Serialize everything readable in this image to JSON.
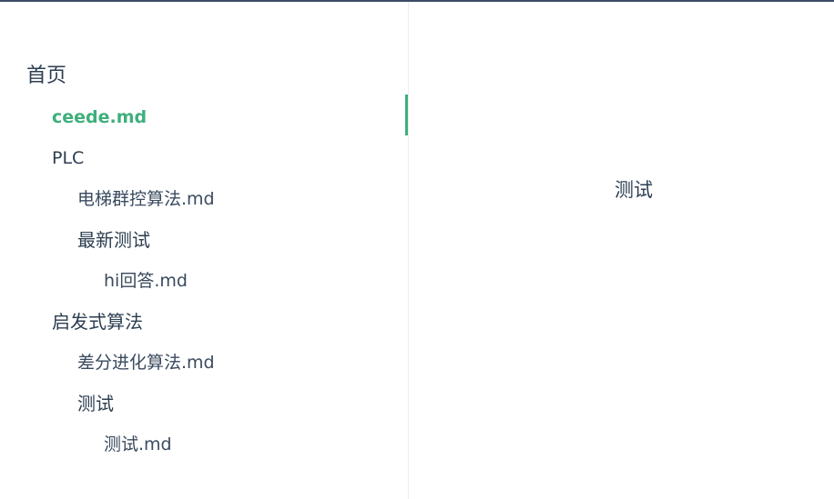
{
  "sidebar": {
    "home": "首页",
    "ceede": "ceede.md",
    "plc": "PLC",
    "elevator": "电梯群控算法.md",
    "latest_test": "最新测试",
    "hi_answer": "hi回答.md",
    "heuristic": "启发式算法",
    "de_algorithm": "差分进化算法.md",
    "test_group": "测试",
    "test_md": "测试.md"
  },
  "content": {
    "heading": "测试"
  },
  "colors": {
    "accent": "#3eaf7c",
    "text": "#2c3e50",
    "top_border": "#3d4b66"
  }
}
